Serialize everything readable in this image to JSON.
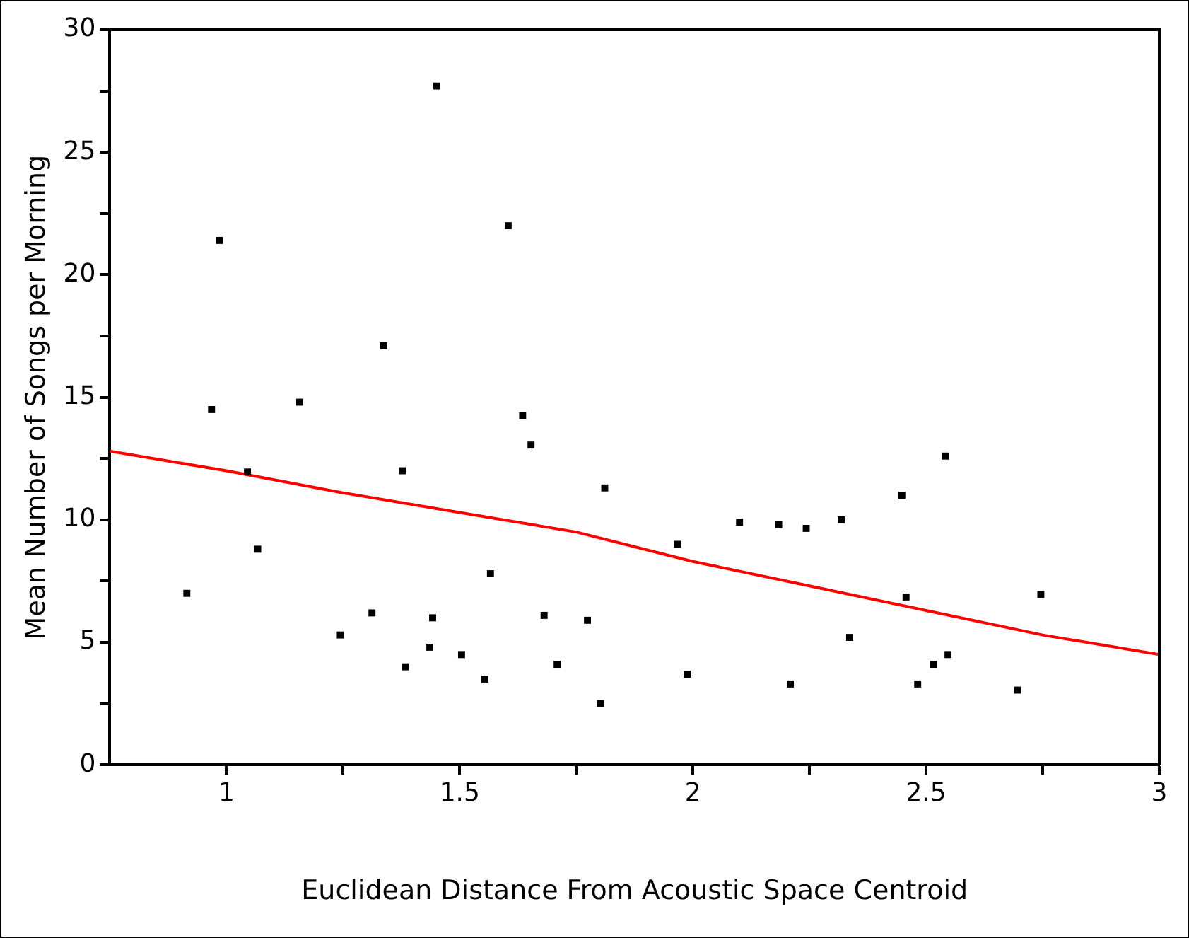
{
  "chart_data": {
    "type": "scatter",
    "xlabel": "Euclidean Distance From Acoustic Space Centroid",
    "ylabel": "Mean Number of Songs per Morning",
    "xlim": [
      0.75,
      3
    ],
    "xticks": [
      1,
      {
        "value": 1.25,
        "label": null
      },
      1.5,
      {
        "value": 1.75,
        "label": null
      },
      2,
      {
        "value": 2.25,
        "label": null
      },
      2.5,
      {
        "value": 2.75,
        "label": null
      },
      3
    ],
    "ylim": [
      0,
      30
    ],
    "yticks": [
      0,
      {
        "value": 2.5,
        "label": null
      },
      5,
      {
        "value": 7.5,
        "label": null
      },
      10,
      {
        "value": 12.5,
        "label": null
      },
      15,
      {
        "value": 17.5,
        "label": null
      },
      20,
      {
        "value": 22.5,
        "label": null
      },
      25,
      {
        "value": 27.5,
        "label": null
      },
      30
    ],
    "grid": false,
    "legend": false,
    "marker": "square",
    "series": [
      {
        "color": "#000000",
        "x": [
          0.915,
          0.968,
          0.985,
          1.045,
          1.067,
          1.157,
          1.244,
          1.312,
          1.337,
          1.377,
          1.383,
          1.436,
          1.442,
          1.451,
          1.504,
          1.554,
          1.566,
          1.604,
          1.635,
          1.653,
          1.681,
          1.709,
          1.774,
          1.802,
          1.811,
          1.967,
          1.988,
          2.1,
          2.184,
          2.209,
          2.243,
          2.318,
          2.336,
          2.448,
          2.457,
          2.482,
          2.516,
          2.547,
          2.541,
          2.696,
          2.746
        ],
        "values": [
          7.0,
          14.5,
          21.4,
          11.95,
          8.8,
          14.8,
          5.3,
          6.2,
          17.1,
          12.0,
          4.0,
          4.8,
          6.0,
          27.7,
          4.5,
          3.5,
          7.8,
          22.0,
          14.25,
          13.05,
          6.1,
          4.1,
          5.9,
          2.5,
          11.3,
          9.0,
          3.7,
          9.9,
          9.8,
          3.3,
          9.65,
          10.0,
          5.2,
          11.0,
          6.85,
          3.3,
          4.1,
          4.5,
          12.6,
          3.05,
          6.95
        ]
      },
      {
        "type": "line",
        "color": "#ff0000",
        "marker": "none",
        "line_style": "solid",
        "x": [
          0.75,
          1.0,
          1.25,
          1.5,
          1.75,
          2.0,
          2.25,
          2.5,
          2.75,
          3.0
        ],
        "values": [
          12.8,
          12.0,
          11.1,
          10.3,
          9.5,
          8.3,
          7.3,
          6.3,
          5.3,
          4.5
        ]
      }
    ]
  }
}
